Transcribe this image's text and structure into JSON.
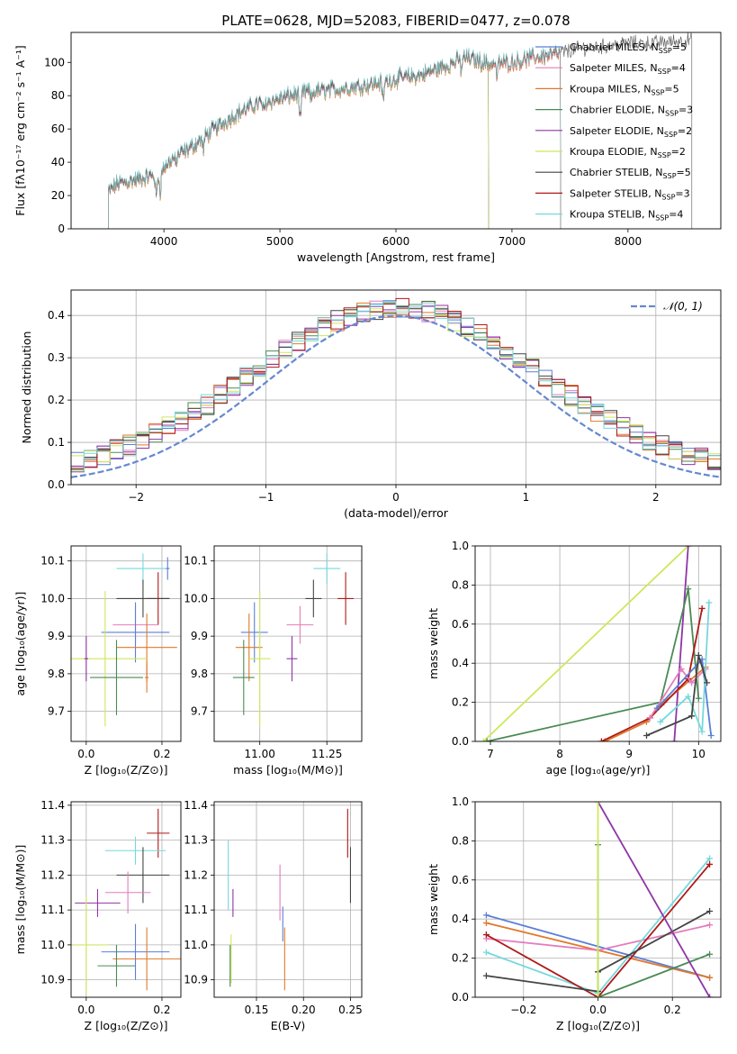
{
  "figure_title": "PLATE=0628, MJD=52083, FIBERID=0477, z=0.078",
  "colors": {
    "chabrier_miles": "#5b7fd6",
    "salpeter_miles": "#e47dbb",
    "kroupa_miles": "#e0792a",
    "chabrier_elodie": "#4a8a55",
    "salpeter_elodie": "#8e36a6",
    "kroupa_elodie": "#cde85a",
    "chabrier_stelib": "#444444",
    "salpeter_stelib": "#b01818",
    "kroupa_stelib": "#76d8dc",
    "normal_curve": "#6688d0",
    "grid": "#b0b0b0"
  },
  "chart_data": [
    {
      "id": "spectrum",
      "type": "line",
      "xlabel": "wavelength [Angstrom, rest frame]",
      "ylabel": "Flux [fλ10⁻¹⁷ erg cm⁻² s⁻¹ A⁻¹]",
      "xlim": [
        3200,
        8800
      ],
      "ylim": [
        0,
        118
      ],
      "xticks": [
        4000,
        5000,
        6000,
        7000,
        8000
      ],
      "yticks": [
        0,
        20,
        40,
        60,
        80,
        100
      ],
      "spectrum_anchor_points": [
        [
          3520,
          22
        ],
        [
          3600,
          27
        ],
        [
          3800,
          30
        ],
        [
          3950,
          33
        ],
        [
          4100,
          44
        ],
        [
          4200,
          47
        ],
        [
          4400,
          58
        ],
        [
          4600,
          68
        ],
        [
          4800,
          75
        ],
        [
          5000,
          78
        ],
        [
          5200,
          82
        ],
        [
          5400,
          83
        ],
        [
          5600,
          85
        ],
        [
          5800,
          87
        ],
        [
          6000,
          90
        ],
        [
          6200,
          92
        ],
        [
          6400,
          97
        ],
        [
          6600,
          103
        ],
        [
          6800,
          99
        ],
        [
          7000,
          100
        ],
        [
          7200,
          103
        ],
        [
          7400,
          105
        ],
        [
          7600,
          108
        ],
        [
          7800,
          109
        ],
        [
          8000,
          111
        ],
        [
          8200,
          111
        ],
        [
          8400,
          112
        ],
        [
          8550,
          113
        ]
      ],
      "legend_position": "upper right",
      "series": [
        {
          "name": "Chabrier MILES, N",
          "nssp": "5",
          "color_key": "chabrier_miles",
          "x_end": 7420
        },
        {
          "name": "Salpeter MILES, N",
          "nssp": "4",
          "color_key": "salpeter_miles",
          "x_end": 7420
        },
        {
          "name": "Kroupa MILES, N",
          "nssp": "5",
          "color_key": "kroupa_miles",
          "x_end": 7420
        },
        {
          "name": "Chabrier ELODIE, N",
          "nssp": "3",
          "color_key": "chabrier_elodie",
          "x_end": 6800
        },
        {
          "name": "Salpeter ELODIE, N",
          "nssp": "2",
          "color_key": "salpeter_elodie",
          "x_end": 6800
        },
        {
          "name": "Kroupa ELODIE, N",
          "nssp": "2",
          "color_key": "kroupa_elodie",
          "x_end": 6800
        },
        {
          "name": "Chabrier STELIB, N",
          "nssp": "5",
          "color_key": "chabrier_stelib",
          "x_end": 8550
        },
        {
          "name": "Salpeter STELIB, N",
          "nssp": "3",
          "color_key": "salpeter_stelib",
          "x_end": 7420
        },
        {
          "name": "Kroupa STELIB, N",
          "nssp": "4",
          "color_key": "kroupa_stelib",
          "x_end": 7420
        }
      ],
      "nssp_subscript": "SSP"
    },
    {
      "id": "residual_hist",
      "type": "histogram",
      "xlabel": "(data-model)/error",
      "ylabel": "Normed distribution",
      "xlim": [
        -2.5,
        2.5
      ],
      "ylim": [
        0,
        0.46
      ],
      "xticks": [
        -2,
        -1,
        0,
        1,
        2
      ],
      "yticks": [
        0.0,
        0.1,
        0.2,
        0.3,
        0.4
      ],
      "bin_edges_start": -2.5,
      "bin_width": 0.1,
      "normal_curve_label": "𝒩(0, 1)",
      "legend_position": "upper right"
    },
    {
      "id": "age_vs_Z",
      "type": "errorbar",
      "xlabel": "Z [log₁₀(Z/Z⊙)]",
      "ylabel": "age  [log₁₀(age/yr)]",
      "xlim": [
        -0.04,
        0.25
      ],
      "ylim": [
        9.62,
        10.14
      ],
      "xticks": [
        0.0,
        0.2
      ],
      "yticks": [
        9.7,
        9.8,
        9.9,
        10.0,
        10.1
      ],
      "points": [
        {
          "key": "kroupa_stelib",
          "x": 0.15,
          "xerr": 0.07,
          "y": 10.08,
          "yerr": 0.04
        },
        {
          "key": "chabrier_miles",
          "x": 0.215,
          "xerr": 0.005,
          "y": 10.08,
          "yerr": 0.03
        },
        {
          "key": "salpeter_stelib",
          "x": 0.19,
          "xerr": 0.03,
          "y": 10.0,
          "yerr": 0.07
        },
        {
          "key": "chabrier_stelib",
          "x": 0.15,
          "xerr": 0.07,
          "y": 10.0,
          "yerr": 0.05
        },
        {
          "key": "salpeter_miles",
          "x": 0.13,
          "xerr": 0.06,
          "y": 9.93,
          "yerr": 0.05
        },
        {
          "key": "chabrier_miles",
          "x": 0.13,
          "xerr": 0.09,
          "y": 9.91,
          "yerr": 0.08
        },
        {
          "key": "kroupa_miles",
          "x": 0.16,
          "xerr": 0.08,
          "y": 9.87,
          "yerr": 0.09
        },
        {
          "key": "kroupa_elodie",
          "x": 0.05,
          "xerr": 0.11,
          "y": 9.84,
          "yerr": 0.18
        },
        {
          "key": "salpeter_elodie",
          "x": 0.0,
          "xerr": 0.005,
          "y": 9.84,
          "yerr": 0.06
        },
        {
          "key": "chabrier_elodie",
          "x": 0.08,
          "xerr": 0.07,
          "y": 9.79,
          "yerr": 0.1
        },
        {
          "key": "kroupa_miles",
          "x": 0.16,
          "xerr": 0.005,
          "y": 9.79,
          "yerr": 0.04
        }
      ]
    },
    {
      "id": "age_vs_mass",
      "type": "errorbar",
      "xlabel": "mass [log₁₀(M/M⊙)]",
      "xlim": [
        10.83,
        11.38
      ],
      "ylim": [
        9.62,
        10.14
      ],
      "xticks": [
        11.0,
        11.25
      ],
      "yticks": [
        9.7,
        9.8,
        9.9,
        10.0,
        10.1
      ],
      "points": [
        {
          "key": "kroupa_stelib",
          "x": 11.25,
          "xerr": 0.05,
          "y": 10.08,
          "yerr": 0.04
        },
        {
          "key": "salpeter_stelib",
          "x": 11.32,
          "xerr": 0.03,
          "y": 10.0,
          "yerr": 0.07
        },
        {
          "key": "chabrier_stelib",
          "x": 11.2,
          "xerr": 0.03,
          "y": 10.0,
          "yerr": 0.05
        },
        {
          "key": "salpeter_miles",
          "x": 11.15,
          "xerr": 0.05,
          "y": 9.93,
          "yerr": 0.05
        },
        {
          "key": "chabrier_miles",
          "x": 10.98,
          "xerr": 0.05,
          "y": 9.91,
          "yerr": 0.08
        },
        {
          "key": "kroupa_miles",
          "x": 10.96,
          "xerr": 0.05,
          "y": 9.87,
          "yerr": 0.09
        },
        {
          "key": "kroupa_elodie",
          "x": 11.0,
          "xerr": 0.04,
          "y": 9.84,
          "yerr": 0.18
        },
        {
          "key": "salpeter_elodie",
          "x": 11.12,
          "xerr": 0.02,
          "y": 9.84,
          "yerr": 0.06
        },
        {
          "key": "chabrier_elodie",
          "x": 10.94,
          "xerr": 0.04,
          "y": 9.79,
          "yerr": 0.1
        }
      ]
    },
    {
      "id": "weight_vs_age",
      "type": "line",
      "xlabel": "age  [log₁₀(age/yr)]",
      "ylabel": "mass weight",
      "xlim": [
        6.78,
        10.32
      ],
      "ylim": [
        0,
        1.0
      ],
      "xticks": [
        7,
        8,
        9,
        10
      ],
      "yticks": [
        0.0,
        0.2,
        0.4,
        0.6,
        0.8,
        1.0
      ],
      "series": [
        {
          "key": "kroupa_elodie",
          "points": [
            [
              6.9,
              0.0
            ],
            [
              9.85,
              1.0
            ]
          ]
        },
        {
          "key": "salpeter_elodie",
          "points": [
            [
              9.65,
              0.0
            ],
            [
              9.85,
              1.0
            ]
          ]
        },
        {
          "key": "chabrier_elodie",
          "points": [
            [
              6.95,
              0.0
            ],
            [
              9.45,
              0.2
            ],
            [
              9.85,
              0.78
            ],
            [
              10.0,
              0.22
            ]
          ]
        },
        {
          "key": "kroupa_miles",
          "points": [
            [
              8.65,
              0.0
            ],
            [
              9.25,
              0.1
            ],
            [
              9.5,
              0.2
            ],
            [
              10.1,
              0.38
            ]
          ]
        },
        {
          "key": "salpeter_stelib",
          "points": [
            [
              8.6,
              0.0
            ],
            [
              9.3,
              0.12
            ],
            [
              9.85,
              0.32
            ],
            [
              10.05,
              0.68
            ]
          ]
        },
        {
          "key": "salpeter_miles",
          "points": [
            [
              9.3,
              0.12
            ],
            [
              9.75,
              0.37
            ],
            [
              9.9,
              0.3
            ],
            [
              10.1,
              0.37
            ]
          ]
        },
        {
          "key": "chabrier_miles",
          "points": [
            [
              9.4,
              0.17
            ],
            [
              10.05,
              0.42
            ],
            [
              10.18,
              0.03
            ]
          ]
        },
        {
          "key": "kroupa_stelib",
          "points": [
            [
              9.45,
              0.1
            ],
            [
              9.85,
              0.23
            ],
            [
              10.05,
              0.05
            ],
            [
              10.15,
              0.71
            ]
          ]
        },
        {
          "key": "chabrier_stelib",
          "points": [
            [
              9.25,
              0.03
            ],
            [
              9.9,
              0.13
            ],
            [
              10.0,
              0.44
            ],
            [
              10.12,
              0.3
            ]
          ]
        }
      ]
    },
    {
      "id": "mass_vs_Z",
      "type": "errorbar",
      "xlabel": "Z [log₁₀(Z/Z⊙)]",
      "ylabel": "mass [log₁₀(M/M⊙)]",
      "xlim": [
        -0.04,
        0.25
      ],
      "ylim": [
        10.85,
        11.41
      ],
      "xticks": [
        0.0,
        0.2
      ],
      "yticks": [
        10.9,
        11.0,
        11.1,
        11.2,
        11.3,
        11.4
      ],
      "points": [
        {
          "key": "salpeter_stelib",
          "x": 0.19,
          "xerr": 0.03,
          "y": 11.32,
          "yerr": 0.07
        },
        {
          "key": "kroupa_stelib",
          "x": 0.13,
          "xerr": 0.08,
          "y": 11.27,
          "yerr": 0.04
        },
        {
          "key": "chabrier_stelib",
          "x": 0.15,
          "xerr": 0.07,
          "y": 11.2,
          "yerr": 0.08
        },
        {
          "key": "salpeter_miles",
          "x": 0.11,
          "xerr": 0.06,
          "y": 11.15,
          "yerr": 0.06
        },
        {
          "key": "salpeter_elodie",
          "x": 0.03,
          "xerr": 0.06,
          "y": 11.12,
          "yerr": 0.04
        },
        {
          "key": "kroupa_elodie",
          "x": 0.0,
          "xerr": 0.06,
          "y": 11.0,
          "yerr": 0.14
        },
        {
          "key": "chabrier_miles",
          "x": 0.13,
          "xerr": 0.09,
          "y": 10.98,
          "yerr": 0.08
        },
        {
          "key": "kroupa_miles",
          "x": 0.16,
          "xerr": 0.09,
          "y": 10.96,
          "yerr": 0.09
        },
        {
          "key": "chabrier_elodie",
          "x": 0.08,
          "xerr": 0.05,
          "y": 10.94,
          "yerr": 0.06
        }
      ]
    },
    {
      "id": "mass_vs_ebv",
      "type": "errorbar",
      "xlabel": "E(B-V)",
      "xlim": [
        0.105,
        0.262
      ],
      "ylim": [
        10.85,
        11.41
      ],
      "xticks": [
        0.15,
        0.2,
        0.25
      ],
      "yticks": [
        10.9,
        11.0,
        11.1,
        11.2,
        11.3,
        11.4
      ],
      "points": [
        {
          "key": "salpeter_stelib",
          "x": 0.247,
          "y": 11.32,
          "yerr": 0.07
        },
        {
          "key": "chabrier_stelib",
          "x": 0.25,
          "y": 11.2,
          "yerr": 0.08
        },
        {
          "key": "kroupa_stelib",
          "x": 0.12,
          "y": 11.2,
          "yerr": 0.1
        },
        {
          "key": "salpeter_miles",
          "x": 0.175,
          "y": 11.15,
          "yerr": 0.08
        },
        {
          "key": "salpeter_elodie",
          "x": 0.125,
          "y": 11.12,
          "yerr": 0.04
        },
        {
          "key": "chabrier_miles",
          "x": 0.178,
          "y": 11.06,
          "yerr": 0.05
        },
        {
          "key": "kroupa_elodie",
          "x": 0.123,
          "y": 10.96,
          "yerr": 0.07
        },
        {
          "key": "kroupa_miles",
          "x": 0.18,
          "y": 10.96,
          "yerr": 0.09
        },
        {
          "key": "chabrier_elodie",
          "x": 0.122,
          "y": 10.94,
          "yerr": 0.06
        }
      ]
    },
    {
      "id": "weight_vs_Z",
      "type": "line",
      "xlabel": "Z [log₁₀(Z/Z⊙)]",
      "ylabel": "mass weight",
      "xlim": [
        -0.33,
        0.33
      ],
      "ylim": [
        0,
        1.0
      ],
      "xticks": [
        -0.2,
        0.0,
        0.2
      ],
      "yticks": [
        0.0,
        0.2,
        0.4,
        0.6,
        0.8,
        1.0
      ],
      "series": [
        {
          "key": "chabrier_miles",
          "points": [
            [
              -0.3,
              0.42
            ],
            [
              0.3,
              0.1
            ]
          ]
        },
        {
          "key": "kroupa_miles",
          "points": [
            [
              -0.3,
              0.38
            ],
            [
              0.3,
              0.1
            ]
          ]
        },
        {
          "key": "salpeter_miles",
          "points": [
            [
              -0.3,
              0.3
            ],
            [
              0.0,
              0.24
            ],
            [
              0.3,
              0.37
            ]
          ]
        },
        {
          "key": "kroupa_stelib",
          "points": [
            [
              -0.3,
              0.23
            ],
            [
              0.0,
              0.02
            ],
            [
              0.3,
              0.71
            ]
          ]
        },
        {
          "key": "salpeter_stelib",
          "points": [
            [
              -0.3,
              0.32
            ],
            [
              0.0,
              0.0
            ],
            [
              0.3,
              0.68
            ]
          ]
        },
        {
          "key": "chabrier_stelib",
          "points": [
            [
              -0.3,
              0.11
            ],
            [
              0.0,
              0.03
            ],
            [
              0.0,
              0.13
            ],
            [
              0.3,
              0.44
            ]
          ]
        },
        {
          "key": "chabrier_elodie",
          "points": [
            [
              0.0,
              0.78
            ],
            [
              0.0,
              0.0
            ],
            [
              0.3,
              0.22
            ]
          ]
        },
        {
          "key": "salpeter_elodie",
          "points": [
            [
              0.0,
              1.0
            ],
            [
              0.3,
              0.0
            ]
          ]
        },
        {
          "key": "kroupa_elodie",
          "points": [
            [
              0.0,
              0.0
            ],
            [
              0.0,
              1.0
            ]
          ]
        }
      ]
    }
  ]
}
